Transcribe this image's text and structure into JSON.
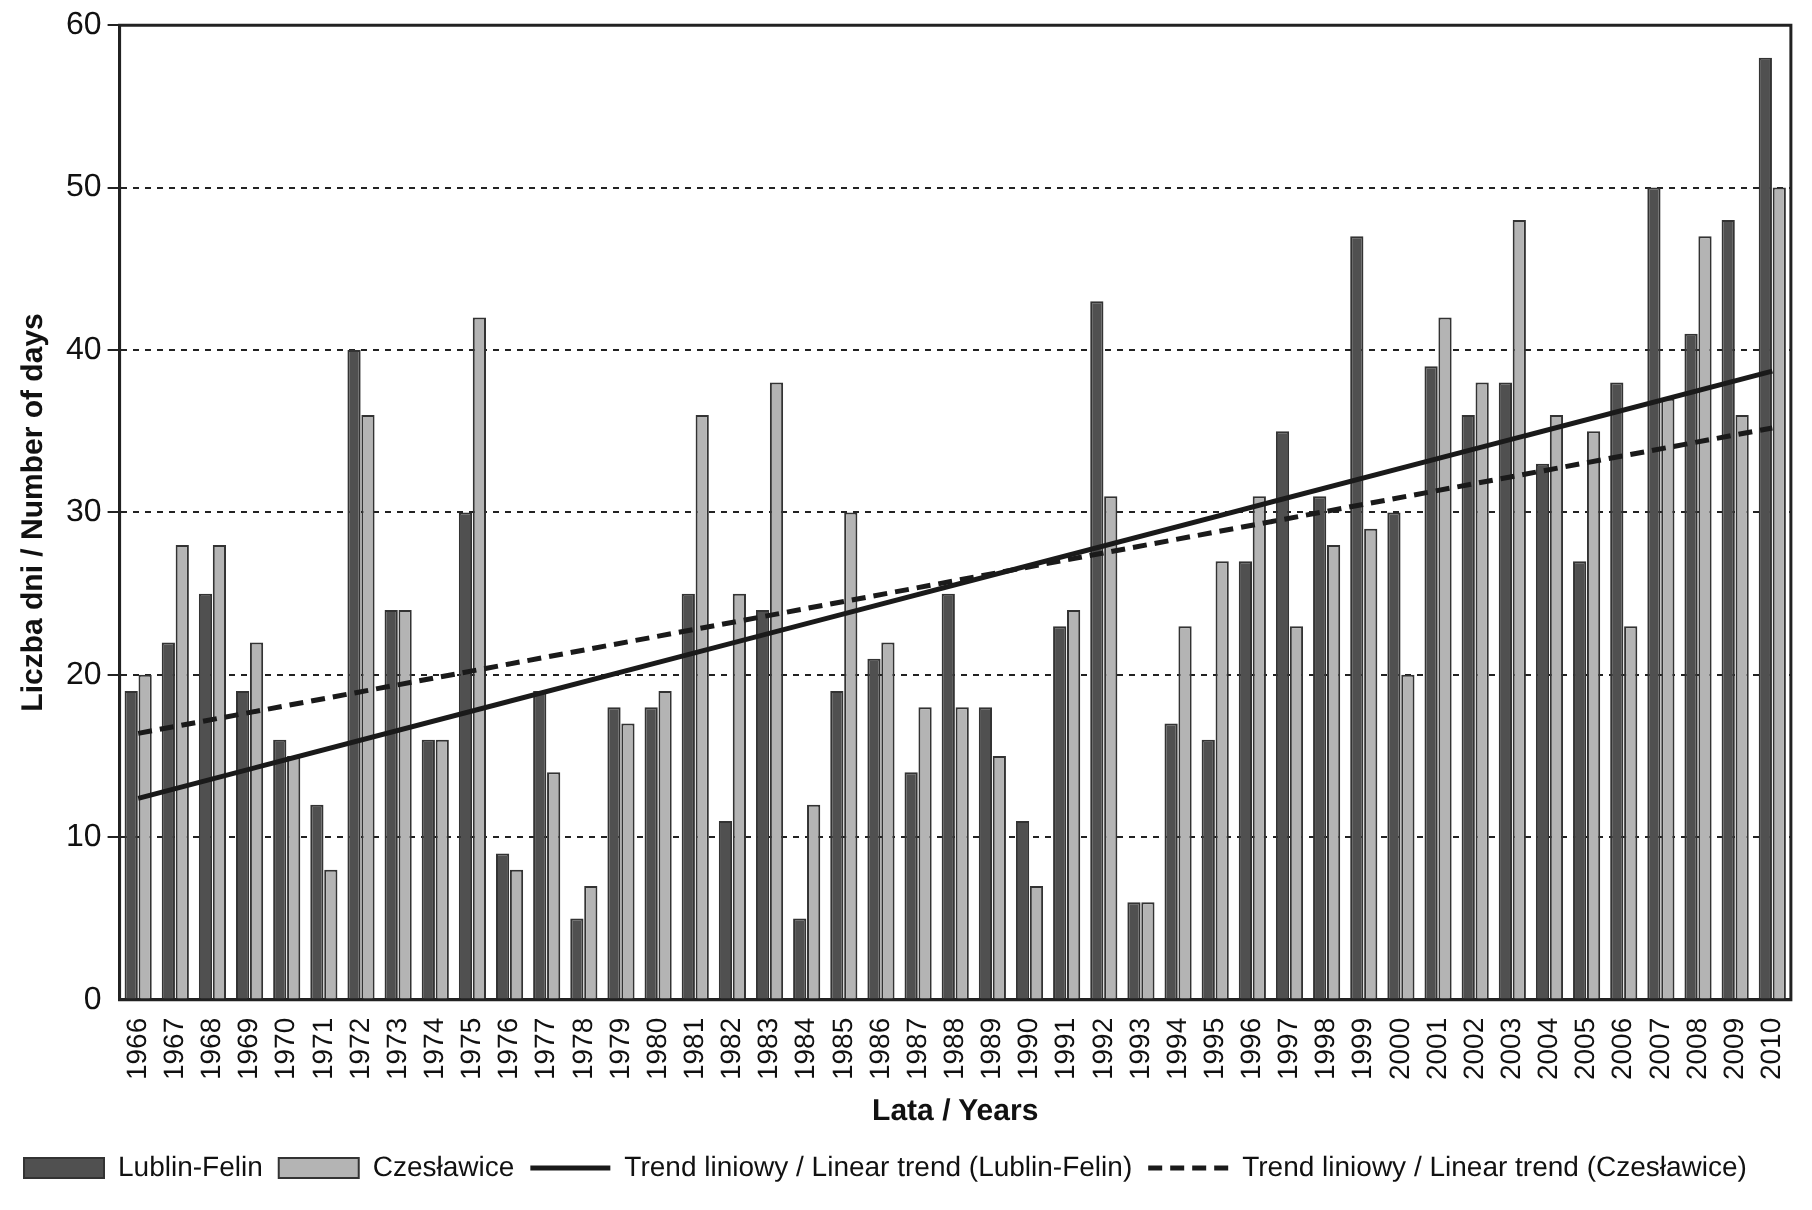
{
  "chart_data": {
    "type": "bar",
    "xlabel": "Lata / Years",
    "ylabel": "Liczba dni / Number of days",
    "categories": [
      "1966",
      "1967",
      "1968",
      "1969",
      "1970",
      "1971",
      "1972",
      "1973",
      "1974",
      "1975",
      "1976",
      "1977",
      "1978",
      "1979",
      "1980",
      "1981",
      "1982",
      "1983",
      "1984",
      "1985",
      "1986",
      "1987",
      "1988",
      "1989",
      "1990",
      "1991",
      "1992",
      "1993",
      "1994",
      "1995",
      "1996",
      "1997",
      "1998",
      "1999",
      "2000",
      "2001",
      "2002",
      "2003",
      "2004",
      "2005",
      "2006",
      "2007",
      "2008",
      "2009",
      "2010"
    ],
    "series": [
      {
        "name": "Lublin-Felin",
        "color": "#505050",
        "values": [
          19,
          22,
          25,
          19,
          16,
          12,
          40,
          24,
          16,
          30,
          9,
          19,
          5,
          18,
          18,
          25,
          11,
          24,
          5,
          19,
          21,
          14,
          25,
          18,
          11,
          23,
          43,
          6,
          17,
          16,
          27,
          35,
          31,
          47,
          30,
          39,
          36,
          38,
          33,
          27,
          38,
          50,
          41,
          48,
          58
        ]
      },
      {
        "name": "Czesławice",
        "color": "#b4b4b4",
        "values": [
          20,
          28,
          28,
          22,
          15,
          8,
          36,
          24,
          16,
          42,
          8,
          14,
          7,
          17,
          19,
          36,
          25,
          38,
          12,
          30,
          22,
          18,
          18,
          15,
          7,
          24,
          31,
          6,
          23,
          27,
          31,
          23,
          28,
          29,
          20,
          42,
          38,
          48,
          36,
          35,
          23,
          37,
          47,
          36,
          50
        ]
      },
      {
        "name": "Trend liniowy / Linear trend (Lublin-Felin)",
        "type": "line",
        "color": "#1a1a1a",
        "line_style": "solid",
        "values": [
          12.4,
          null,
          null,
          null,
          null,
          null,
          null,
          null,
          null,
          null,
          null,
          null,
          null,
          null,
          null,
          null,
          null,
          null,
          null,
          null,
          null,
          null,
          null,
          null,
          null,
          null,
          null,
          null,
          null,
          null,
          null,
          null,
          null,
          null,
          null,
          null,
          null,
          null,
          null,
          null,
          null,
          null,
          null,
          null,
          38.7
        ]
      },
      {
        "name": "Trend liniowy / Linear trend (Czesławice)",
        "type": "line",
        "color": "#1a1a1a",
        "line_style": "dashed",
        "values": [
          16.4,
          null,
          null,
          null,
          null,
          null,
          null,
          null,
          null,
          null,
          null,
          null,
          null,
          null,
          null,
          null,
          null,
          null,
          null,
          null,
          null,
          null,
          null,
          null,
          null,
          null,
          null,
          null,
          null,
          null,
          null,
          null,
          null,
          null,
          null,
          null,
          null,
          null,
          null,
          null,
          null,
          null,
          null,
          null,
          35.2
        ]
      }
    ],
    "ylim": [
      0,
      60
    ],
    "yticks": [
      0,
      10,
      20,
      30,
      40,
      50,
      60
    ],
    "grid": "y",
    "legend": "bottom"
  }
}
